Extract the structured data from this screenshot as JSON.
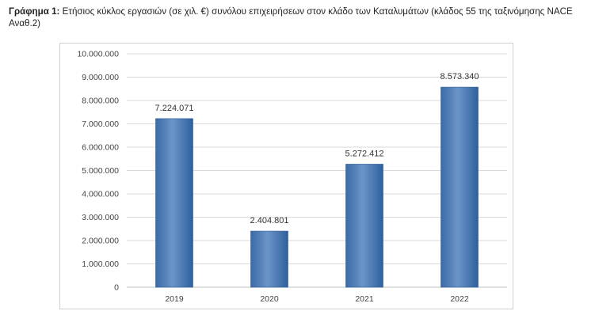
{
  "caption": {
    "prefix": "Γράφημα 1:",
    "text": " Ετήσιος κύκλος εργασιών (σε χιλ. €) συνόλου επιχειρήσεων στον κλάδο των Καταλυμάτων (κλάδος 55 της ταξινόμησης NACE Αναθ.2)"
  },
  "chart_data": {
    "type": "bar",
    "categories": [
      "2019",
      "2020",
      "2021",
      "2022"
    ],
    "values": [
      7224071,
      2404801,
      5272412,
      8573340
    ],
    "data_labels": [
      "7.224.071",
      "2.404.801",
      "5.272.412",
      "8.573.340"
    ],
    "ylim": [
      0,
      10000000
    ],
    "yticks": [
      0,
      1000000,
      2000000,
      3000000,
      4000000,
      5000000,
      6000000,
      7000000,
      8000000,
      9000000,
      10000000
    ],
    "ytick_labels": [
      "0",
      "1.000.000",
      "2.000.000",
      "3.000.000",
      "4.000.000",
      "5.000.000",
      "6.000.000",
      "7.000.000",
      "8.000.000",
      "9.000.000",
      "10.000.000"
    ],
    "grid": true,
    "bar_color": "#4f81bd"
  }
}
